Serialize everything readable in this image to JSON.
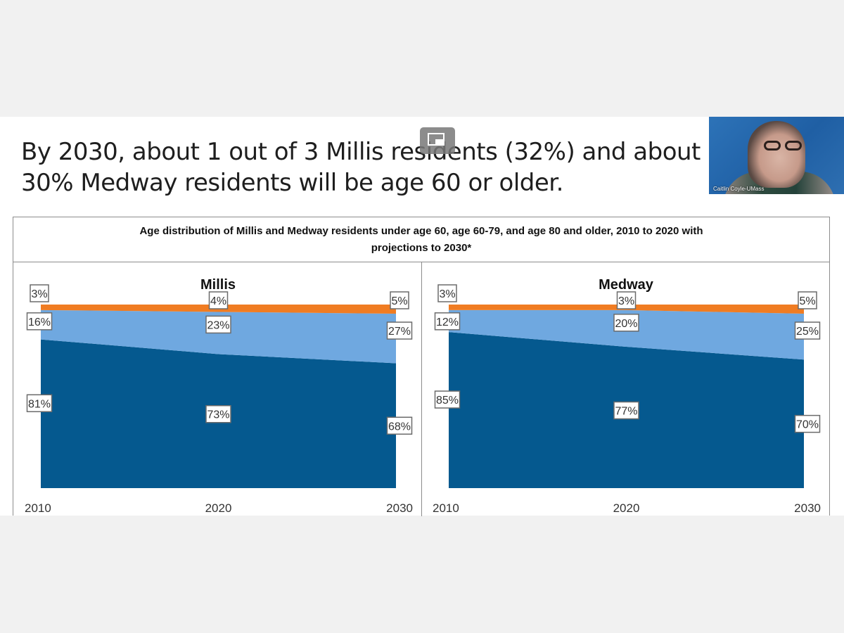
{
  "slide": {
    "headline_line1": "By 2030, about 1 out of 3 Millis residents (32%) and about",
    "headline_line2": "30% Medway residents will be age 60 or older.",
    "video_tile": {
      "participant_name": "Caitlin Coyle-UMass"
    },
    "overlay_icon": "picture-in-picture-icon"
  },
  "colors": {
    "under_60": "#05598f",
    "age_60_79": "#6fa8e0",
    "age_80_plus": "#f07c22"
  },
  "chart_data": {
    "type": "area",
    "stacked": "percent",
    "title": "Age distribution of Millis and Medway residents under age 60, age 60-79, and age 80 and older, 2010 to 2020 with projections to 2030*",
    "title_line1": "Age distribution of Millis and Medway residents under age 60, age 60-79, and age 80 and older, 2010 to 2020 with",
    "title_line2": "projections to 2030*",
    "x": [
      "2010",
      "2020",
      "2030"
    ],
    "ylim": [
      0,
      100
    ],
    "grid": false,
    "legend": "none",
    "panels": [
      {
        "name": "Millis",
        "series": [
          {
            "name": "Under age 60",
            "values": [
              81,
              73,
              68
            ]
          },
          {
            "name": "Age 60-79",
            "values": [
              16,
              23,
              27
            ]
          },
          {
            "name": "Age 80 and older",
            "values": [
              3,
              4,
              5
            ]
          }
        ]
      },
      {
        "name": "Medway",
        "series": [
          {
            "name": "Under age 60",
            "values": [
              85,
              77,
              70
            ]
          },
          {
            "name": "Age 60-79",
            "values": [
              12,
              20,
              25
            ]
          },
          {
            "name": "Age 80 and older",
            "values": [
              3,
              3,
              5
            ]
          }
        ]
      }
    ]
  }
}
